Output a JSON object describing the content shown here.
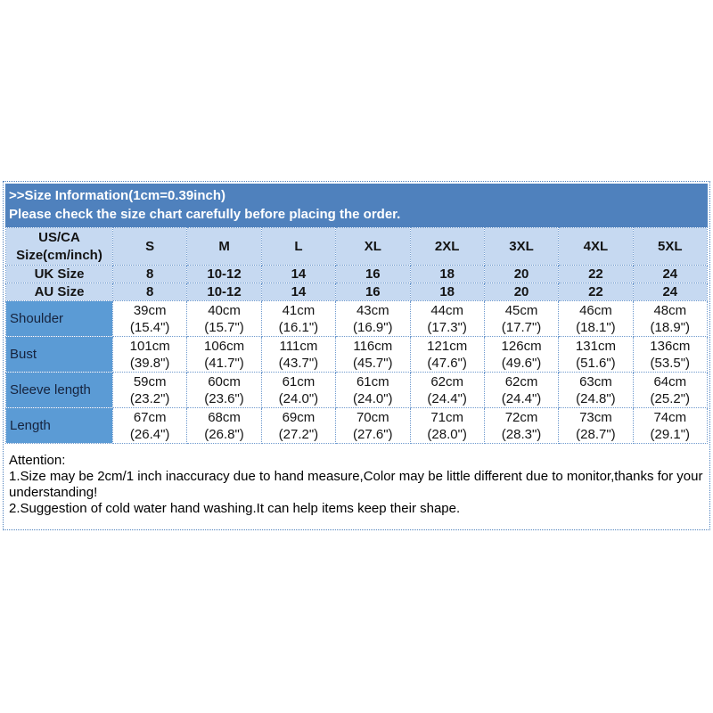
{
  "colors": {
    "band_blue": "#4f81bd",
    "light_blue": "#c6d9f1",
    "label_blue": "#5b9bd5",
    "border_blue": "#6f9ace",
    "text_dark": "#141414",
    "band_text": "#ffffff"
  },
  "band": {
    "title": ">>Size Information(1cm=0.39inch)",
    "note": "Please check the size chart carefully before placing the order."
  },
  "size_table": {
    "corner": {
      "line1": "US/CA",
      "line2": "Size(cm/inch)"
    },
    "columns": [
      "S",
      "M",
      "L",
      "XL",
      "2XL",
      "3XL",
      "4XL",
      "5XL"
    ],
    "size_rows": [
      {
        "label": "UK Size",
        "values": [
          "8",
          "10-12",
          "14",
          "16",
          "18",
          "20",
          "22",
          "24"
        ]
      },
      {
        "label": "AU Size",
        "values": [
          "8",
          "10-12",
          "14",
          "16",
          "18",
          "20",
          "22",
          "24"
        ]
      }
    ],
    "measure_rows": [
      {
        "label": "Shoulder",
        "values_cm": [
          "39cm",
          "40cm",
          "41cm",
          "43cm",
          "44cm",
          "45cm",
          "46cm",
          "48cm"
        ],
        "values_inch": [
          "(15.4\")",
          "(15.7\")",
          "(16.1\")",
          "(16.9\")",
          "(17.3\")",
          "(17.7\")",
          "(18.1\")",
          "(18.9\")"
        ]
      },
      {
        "label": "Bust",
        "values_cm": [
          "101cm",
          "106cm",
          "111cm",
          "116cm",
          "121cm",
          "126cm",
          "131cm",
          "136cm"
        ],
        "values_inch": [
          "(39.8\")",
          "(41.7\")",
          "(43.7\")",
          "(45.7\")",
          "(47.6\")",
          "(49.6\")",
          "(51.6\")",
          "(53.5\")"
        ]
      },
      {
        "label": "Sleeve length",
        "values_cm": [
          "59cm",
          "60cm",
          "61cm",
          "61cm",
          "62cm",
          "62cm",
          "63cm",
          "64cm"
        ],
        "values_inch": [
          "(23.2\")",
          "(23.6\")",
          "(24.0\")",
          "(24.0\")",
          "(24.4\")",
          "(24.4\")",
          "(24.8\")",
          "(25.2\")"
        ]
      },
      {
        "label": "Length",
        "values_cm": [
          "67cm",
          "68cm",
          "69cm",
          "70cm",
          "71cm",
          "72cm",
          "73cm",
          "74cm"
        ],
        "values_inch": [
          "(26.4\")",
          "(26.8\")",
          "(27.2\")",
          "(27.6\")",
          "(28.0\")",
          "(28.3\")",
          "(28.7\")",
          "(29.1\")"
        ]
      }
    ]
  },
  "attention": {
    "title": "Attention:",
    "lines": [
      "1.Size may be 2cm/1 inch inaccuracy due to hand measure,Color may be little different due to monitor,thanks for your understanding!",
      "2.Suggestion of cold water hand washing.It can help items keep their shape."
    ]
  }
}
